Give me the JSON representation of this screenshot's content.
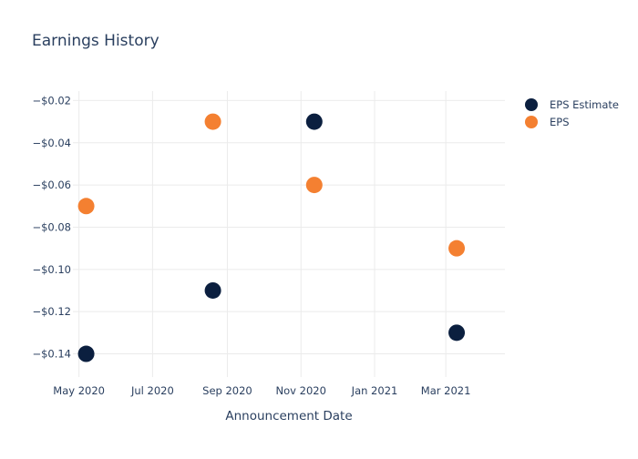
{
  "chart_data": {
    "type": "scatter",
    "title": "Earnings History",
    "xlabel": "Announcement Date",
    "ylabel": "",
    "x_ticks": [
      {
        "date": "2020-05-01",
        "label": "May 2020"
      },
      {
        "date": "2020-07-01",
        "label": "Jul 2020"
      },
      {
        "date": "2020-09-01",
        "label": "Sep 2020"
      },
      {
        "date": "2020-11-01",
        "label": "Nov 2020"
      },
      {
        "date": "2021-01-01",
        "label": "Jan 2021"
      },
      {
        "date": "2021-03-01",
        "label": "Mar 2021"
      }
    ],
    "y_ticks": [
      {
        "value": -0.02,
        "label": "−$0.02"
      },
      {
        "value": -0.04,
        "label": "−$0.04"
      },
      {
        "value": -0.06,
        "label": "−$0.06"
      },
      {
        "value": -0.08,
        "label": "−$0.08"
      },
      {
        "value": -0.1,
        "label": "−$0.10"
      },
      {
        "value": -0.12,
        "label": "−$0.12"
      },
      {
        "value": -0.14,
        "label": "−$0.14"
      }
    ],
    "xlim": [
      "2020-04-26",
      "2021-04-19"
    ],
    "ylim": [
      -0.151,
      -0.0155
    ],
    "grid": true,
    "legend_position": "top-right",
    "series": [
      {
        "name": "EPS Estimate",
        "color": "#0b1f3f",
        "points": [
          {
            "x": "2020-05-07",
            "y": -0.14
          },
          {
            "x": "2020-08-20",
            "y": -0.11
          },
          {
            "x": "2020-11-12",
            "y": -0.03
          },
          {
            "x": "2021-03-10",
            "y": -0.13
          }
        ]
      },
      {
        "name": "EPS",
        "color": "#f48031",
        "points": [
          {
            "x": "2020-05-07",
            "y": -0.07
          },
          {
            "x": "2020-08-20",
            "y": -0.03
          },
          {
            "x": "2020-11-12",
            "y": -0.06
          },
          {
            "x": "2021-03-10",
            "y": -0.09
          }
        ]
      }
    ]
  }
}
